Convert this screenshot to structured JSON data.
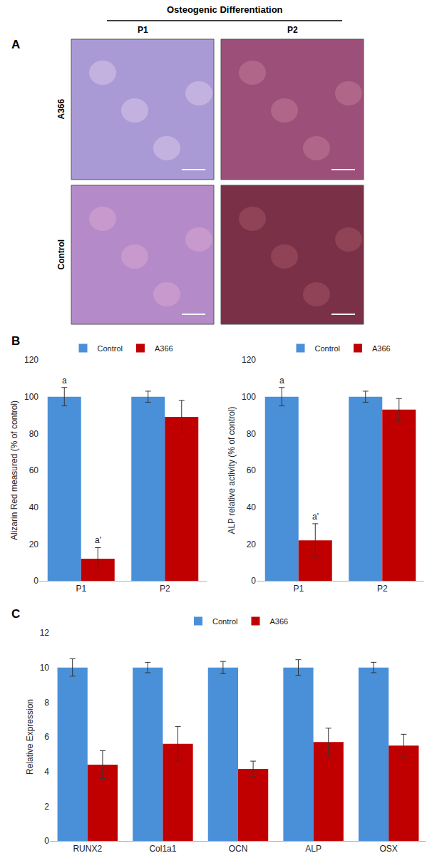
{
  "panel_labels": [
    "A",
    "B",
    "C"
  ],
  "panel_a": {
    "title": "Osteogenic Differentiation",
    "columns": [
      "P1",
      "P2"
    ],
    "rows": [
      "A366",
      "Control"
    ]
  },
  "chart_data": [
    {
      "type": "bar",
      "y_label": "Alizarin Red measured (% of control)",
      "categories": [
        "P1",
        "P2"
      ],
      "series": [
        {
          "name": "Control",
          "color": "#4a90d9",
          "values": [
            100,
            100
          ],
          "errors": [
            5,
            3
          ]
        },
        {
          "name": "A366",
          "color": "#c00000",
          "values": [
            12,
            89
          ],
          "errors": [
            6,
            9
          ]
        }
      ],
      "ylim": [
        0,
        120
      ],
      "yticks": [
        0,
        20,
        40,
        60,
        80,
        100,
        120
      ],
      "grid": false,
      "legend": "top",
      "annotations": [
        {
          "category": "P1",
          "series": "Control",
          "text": "a"
        },
        {
          "category": "P1",
          "series": "A366",
          "text": "a'"
        }
      ]
    },
    {
      "type": "bar",
      "y_label": "ALP relative activity (% of control)",
      "categories": [
        "P1",
        "P2"
      ],
      "series": [
        {
          "name": "Control",
          "color": "#4a90d9",
          "values": [
            100,
            100
          ],
          "errors": [
            5,
            3
          ]
        },
        {
          "name": "A366",
          "color": "#c00000",
          "values": [
            22,
            93
          ],
          "errors": [
            9,
            6
          ]
        }
      ],
      "ylim": [
        0,
        120
      ],
      "yticks": [
        0,
        20,
        40,
        60,
        80,
        100,
        120
      ],
      "grid": false,
      "legend": "top",
      "annotations": [
        {
          "category": "P1",
          "series": "Control",
          "text": "a"
        },
        {
          "category": "P1",
          "series": "A366",
          "text": "a'"
        }
      ]
    },
    {
      "type": "bar",
      "y_label": "Relative Expression",
      "categories": [
        "RUNX2",
        "Col1a1",
        "OCN",
        "ALP",
        "OSX"
      ],
      "series": [
        {
          "name": "Control",
          "color": "#4a90d9",
          "values": [
            10,
            10,
            10,
            10,
            10
          ],
          "errors": [
            0.5,
            0.3,
            0.35,
            0.45,
            0.3
          ]
        },
        {
          "name": "A366",
          "color": "#c00000",
          "values": [
            4.4,
            5.6,
            4.15,
            5.7,
            5.5
          ],
          "errors": [
            0.8,
            1.0,
            0.45,
            0.8,
            0.65
          ]
        }
      ],
      "ylim": [
        0,
        12
      ],
      "yticks": [
        0,
        2,
        4,
        6,
        8,
        10,
        12
      ],
      "grid": false,
      "legend": "top"
    }
  ]
}
